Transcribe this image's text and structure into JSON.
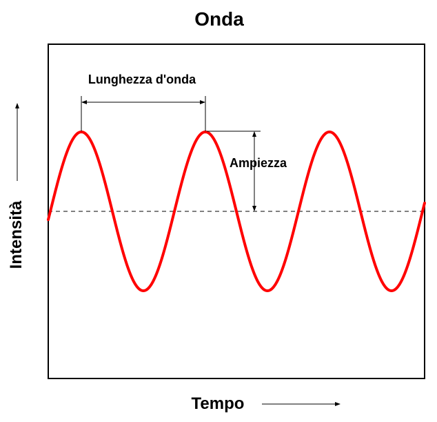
{
  "title": "Onda",
  "x_axis_label": "Tempo",
  "y_axis_label": "Intensità",
  "annotations": {
    "wavelength": "Lunghezza d'onda",
    "amplitude": "Ampiezza"
  },
  "colors": {
    "wave": "#ff0000",
    "frame": "#000000",
    "baseline": "#000000",
    "background": "#ffffff"
  },
  "wave": {
    "shape": "sine",
    "cycles_visible": 3,
    "baseline_style": "dashed"
  }
}
